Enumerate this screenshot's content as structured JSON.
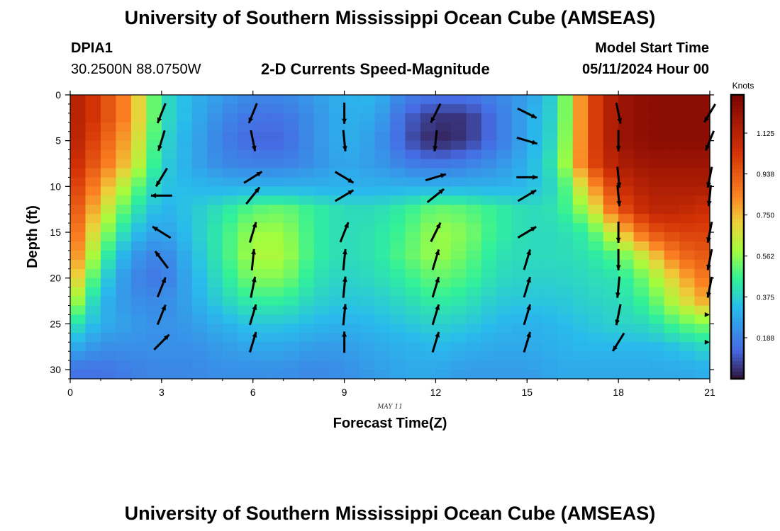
{
  "header": {
    "title": "University of Southern Mississippi Ocean Cube (AMSEAS)",
    "station_id": "DPIA1",
    "station_coords": "30.2500N  88.0750W",
    "chart_title": "2-D Currents Speed-Magnitude",
    "model_start_label": "Model Start Time",
    "model_start_value": "05/11/2024 Hour 00",
    "footer_title": "University of Southern Mississippi Ocean Cube (AMSEAS)"
  },
  "chart_data": {
    "type": "heatmap",
    "xlabel": "Forecast Time(Z)",
    "ylabel": "Depth (ft)",
    "date_label": "MAY 11",
    "xlim": [
      0,
      21
    ],
    "ylim": [
      31,
      0
    ],
    "x_ticks": [
      0,
      3,
      6,
      9,
      12,
      15,
      18,
      21
    ],
    "y_ticks": [
      0,
      5,
      10,
      15,
      20,
      25,
      30
    ],
    "colorbar": {
      "label": "Knots",
      "range": [
        0,
        1.3
      ],
      "ticks": [
        "1.125",
        "0.938",
        "0.750",
        "0.562",
        "0.375",
        "0.188"
      ],
      "tick_values": [
        1.125,
        0.938,
        0.75,
        0.562,
        0.375,
        0.188
      ]
    },
    "speed_grid": {
      "times": [
        0,
        1,
        2,
        3,
        4,
        5,
        6,
        7,
        8,
        9,
        10,
        11,
        12,
        13,
        14,
        15,
        16,
        17,
        18,
        19,
        20,
        21
      ],
      "depths": [
        0,
        2.5,
        5,
        7.5,
        10,
        12.5,
        15,
        17.5,
        20,
        22.5,
        25,
        27.5,
        30
      ],
      "values": [
        [
          1.15,
          1.0,
          0.8,
          0.42,
          0.3,
          0.25,
          0.2,
          0.2,
          0.25,
          0.3,
          0.32,
          0.18,
          0.15,
          0.15,
          0.2,
          0.25,
          0.4,
          0.95,
          1.2,
          1.25,
          1.25,
          1.25
        ],
        [
          1.15,
          1.0,
          0.8,
          0.42,
          0.3,
          0.2,
          0.15,
          0.15,
          0.22,
          0.3,
          0.28,
          0.12,
          0.05,
          0.05,
          0.15,
          0.28,
          0.4,
          0.95,
          1.2,
          1.25,
          1.25,
          1.25
        ],
        [
          1.15,
          0.95,
          0.75,
          0.4,
          0.28,
          0.18,
          0.12,
          0.12,
          0.22,
          0.3,
          0.25,
          0.1,
          0.02,
          0.05,
          0.15,
          0.28,
          0.42,
          0.95,
          1.2,
          1.25,
          1.25,
          1.25
        ],
        [
          1.1,
          0.9,
          0.7,
          0.38,
          0.28,
          0.2,
          0.18,
          0.18,
          0.22,
          0.28,
          0.25,
          0.18,
          0.15,
          0.18,
          0.22,
          0.3,
          0.45,
          0.95,
          1.15,
          1.2,
          1.2,
          1.2
        ],
        [
          1.05,
          0.8,
          0.55,
          0.35,
          0.32,
          0.3,
          0.3,
          0.3,
          0.3,
          0.3,
          0.3,
          0.3,
          0.3,
          0.3,
          0.3,
          0.32,
          0.4,
          0.75,
          1.05,
          1.15,
          1.15,
          1.15
        ],
        [
          1.0,
          0.7,
          0.45,
          0.3,
          0.35,
          0.42,
          0.5,
          0.52,
          0.45,
          0.4,
          0.4,
          0.45,
          0.52,
          0.5,
          0.45,
          0.4,
          0.42,
          0.6,
          0.95,
          1.1,
          1.1,
          1.05
        ],
        [
          0.95,
          0.6,
          0.35,
          0.25,
          0.35,
          0.45,
          0.58,
          0.58,
          0.45,
          0.4,
          0.42,
          0.48,
          0.58,
          0.55,
          0.45,
          0.4,
          0.4,
          0.45,
          0.7,
          0.95,
          1.0,
          1.0
        ],
        [
          0.9,
          0.5,
          0.25,
          0.18,
          0.32,
          0.45,
          0.6,
          0.6,
          0.45,
          0.4,
          0.42,
          0.5,
          0.58,
          0.52,
          0.42,
          0.4,
          0.4,
          0.42,
          0.5,
          0.7,
          0.9,
          0.95
        ],
        [
          0.8,
          0.4,
          0.2,
          0.15,
          0.3,
          0.42,
          0.55,
          0.55,
          0.42,
          0.38,
          0.4,
          0.45,
          0.52,
          0.48,
          0.4,
          0.38,
          0.38,
          0.4,
          0.42,
          0.55,
          0.75,
          0.9
        ],
        [
          0.65,
          0.32,
          0.22,
          0.2,
          0.28,
          0.38,
          0.45,
          0.45,
          0.38,
          0.35,
          0.36,
          0.4,
          0.45,
          0.42,
          0.36,
          0.35,
          0.35,
          0.38,
          0.4,
          0.48,
          0.65,
          0.8
        ],
        [
          0.45,
          0.3,
          0.25,
          0.22,
          0.25,
          0.3,
          0.35,
          0.35,
          0.32,
          0.3,
          0.32,
          0.35,
          0.38,
          0.36,
          0.32,
          0.3,
          0.32,
          0.35,
          0.38,
          0.4,
          0.5,
          0.55
        ],
        [
          0.3,
          0.22,
          0.22,
          0.22,
          0.22,
          0.25,
          0.28,
          0.28,
          0.25,
          0.25,
          0.28,
          0.3,
          0.32,
          0.3,
          0.28,
          0.28,
          0.3,
          0.32,
          0.32,
          0.32,
          0.35,
          0.4
        ],
        [
          0.15,
          0.15,
          0.18,
          0.2,
          0.2,
          0.22,
          0.22,
          0.22,
          0.2,
          0.22,
          0.25,
          0.28,
          0.28,
          0.25,
          0.25,
          0.25,
          0.28,
          0.28,
          0.28,
          0.28,
          0.28,
          0.3
        ]
      ]
    },
    "vectors": {
      "times": [
        3,
        6,
        9,
        12,
        15,
        18,
        21
      ],
      "depths": [
        2,
        5,
        9,
        11,
        15,
        18,
        21,
        24,
        27
      ],
      "u": [
        [
          -0.4,
          -0.4,
          0.0,
          -0.5,
          1.0,
          0.2,
          -0.6
        ],
        [
          -0.3,
          0.2,
          0.1,
          -0.1,
          1.0,
          0.0,
          -0.4
        ],
        [
          -0.6,
          0.8,
          1.0,
          1.0,
          1.0,
          0.1,
          -0.2
        ],
        [
          -1.0,
          0.8,
          1.0,
          1.0,
          1.0,
          0.1,
          -0.1
        ],
        [
          -0.8,
          0.3,
          0.4,
          0.5,
          1.0,
          0.0,
          -0.2
        ],
        [
          -0.6,
          0.1,
          0.1,
          0.3,
          0.3,
          0.0,
          -0.2
        ],
        [
          0.4,
          0.2,
          0.1,
          0.3,
          0.3,
          -0.1,
          -0.2
        ],
        [
          0.4,
          0.3,
          0.1,
          0.3,
          0.3,
          -0.2,
          0.0
        ],
        [
          0.7,
          0.3,
          0.0,
          0.3,
          0.3,
          -0.5,
          0.0
        ]
      ],
      "v": [
        [
          -1.0,
          -1.0,
          -1.0,
          -1.0,
          -0.5,
          -1.0,
          -1.0
        ],
        [
          -1.0,
          -1.0,
          -1.0,
          -1.0,
          -0.3,
          -1.0,
          -1.0
        ],
        [
          -1.0,
          0.5,
          -0.6,
          0.3,
          0.0,
          -1.0,
          -1.0
        ],
        [
          0.0,
          1.0,
          0.6,
          0.8,
          0.6,
          -1.0,
          -1.0
        ],
        [
          0.5,
          1.0,
          1.0,
          1.0,
          0.6,
          -1.0,
          -1.0
        ],
        [
          0.8,
          1.0,
          1.0,
          1.0,
          1.0,
          -1.0,
          -1.0
        ],
        [
          1.0,
          1.0,
          1.0,
          1.0,
          1.0,
          -1.0,
          -1.0
        ],
        [
          1.0,
          1.0,
          1.0,
          1.0,
          1.0,
          -1.0,
          0.0
        ],
        [
          0.7,
          1.0,
          1.0,
          1.0,
          1.0,
          -0.8,
          0.0
        ]
      ]
    }
  }
}
